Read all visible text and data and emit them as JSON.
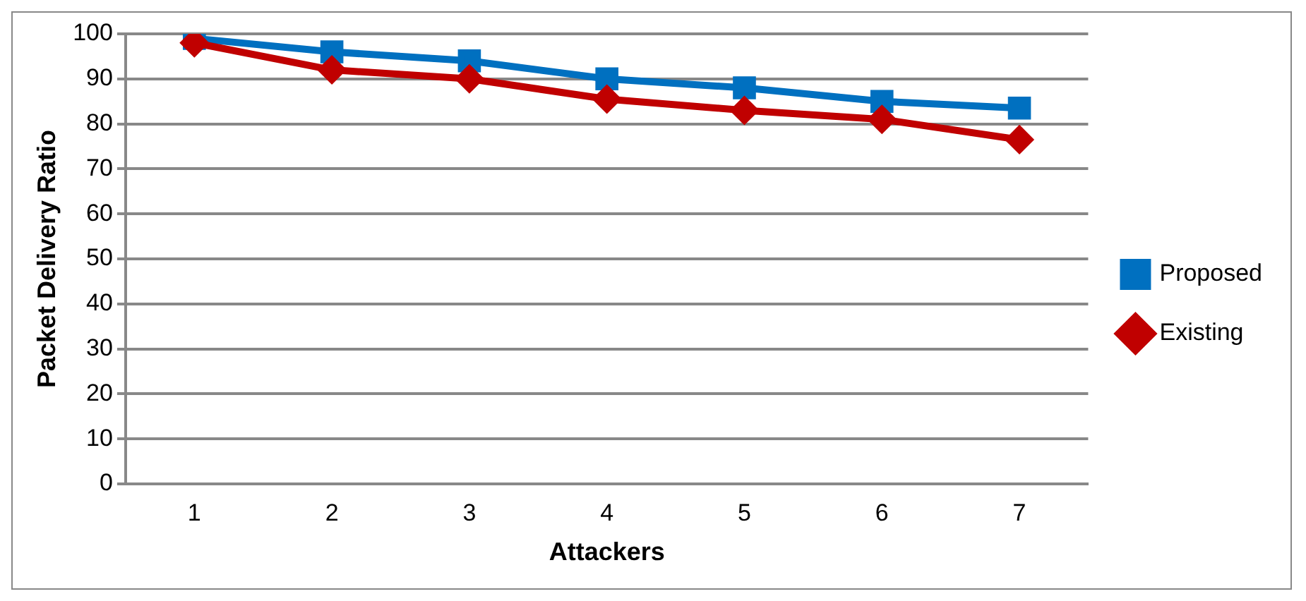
{
  "chart_data": {
    "type": "line",
    "xlabel": "Attackers",
    "ylabel": "Packet Delivery Ratio",
    "categories": [
      "1",
      "2",
      "3",
      "4",
      "5",
      "6",
      "7"
    ],
    "series": [
      {
        "name": "Proposed",
        "color": "#0070c0",
        "marker": "square",
        "values": [
          99,
          96,
          94,
          90,
          88,
          85,
          83.5
        ]
      },
      {
        "name": "Existing",
        "color": "#c00000",
        "marker": "diamond",
        "values": [
          98,
          92,
          90,
          85.5,
          83,
          81,
          76.5
        ]
      }
    ],
    "ylim": [
      0,
      100
    ],
    "yticks": [
      0,
      10,
      20,
      30,
      40,
      50,
      60,
      70,
      80,
      90,
      100
    ],
    "grid": "y",
    "legend": "right"
  }
}
